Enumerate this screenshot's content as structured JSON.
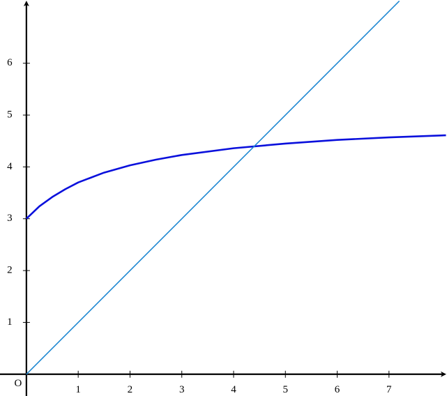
{
  "chart_data": {
    "type": "line",
    "origin_label": "O",
    "series": [
      {
        "color": "#0a10dc",
        "x": [
          0,
          0.25,
          0.5,
          0.75,
          1,
          1.5,
          2,
          2.5,
          3,
          4,
          5,
          6,
          7,
          8.1
        ],
        "values": [
          3,
          3.24,
          3.42,
          3.57,
          3.7,
          3.89,
          4.03,
          4.14,
          4.23,
          4.36,
          4.45,
          4.52,
          4.57,
          4.61
        ]
      },
      {
        "color": "#1f88d2",
        "x": [
          0,
          7.2
        ],
        "values": [
          0,
          7.2
        ]
      }
    ],
    "xlim": [
      -0.51,
      8.12
    ],
    "ylim": [
      -0.42,
      7.22
    ],
    "xticks": [
      1,
      2,
      3,
      4,
      5,
      6,
      7
    ],
    "yticks": [
      1,
      2,
      3,
      4,
      5,
      6
    ]
  }
}
